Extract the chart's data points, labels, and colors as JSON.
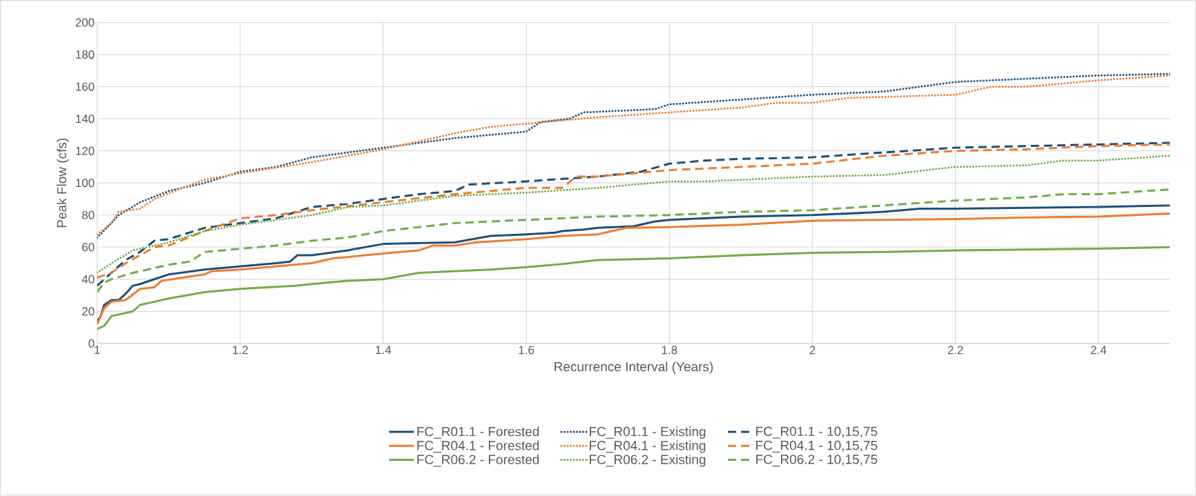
{
  "chart_data": {
    "type": "line",
    "xlabel": "Recurrence Interval (Years)",
    "ylabel": "Peak Flow (cfs)",
    "xlim": [
      1,
      2.5
    ],
    "ylim": [
      0,
      200
    ],
    "xticks": [
      1,
      1.2,
      1.4,
      1.6,
      1.8,
      2,
      2.2,
      2.4
    ],
    "yticks": [
      0,
      20,
      40,
      60,
      80,
      100,
      120,
      140,
      160,
      180,
      200
    ],
    "grid": true,
    "legend": "bottom",
    "series": [
      {
        "name": "FC_R01.1 - Forested",
        "color": "#1f4e79",
        "line_style": "solid",
        "x": [
          1.0,
          1.005,
          1.01,
          1.02,
          1.03,
          1.04,
          1.05,
          1.06,
          1.08,
          1.1,
          1.15,
          1.2,
          1.25,
          1.27,
          1.28,
          1.3,
          1.35,
          1.4,
          1.5,
          1.55,
          1.6,
          1.64,
          1.65,
          1.68,
          1.7,
          1.75,
          1.78,
          1.8,
          1.9,
          2.0,
          2.1,
          2.15,
          2.2,
          2.3,
          2.4,
          2.5
        ],
        "values": [
          14,
          17,
          24,
          27,
          27,
          31,
          36,
          37,
          40,
          43,
          46,
          48,
          50,
          51,
          55,
          55,
          58,
          62,
          63,
          67,
          68,
          69,
          70,
          71,
          72,
          73,
          76,
          77,
          79,
          80,
          82,
          84,
          84,
          84.5,
          85,
          86
        ]
      },
      {
        "name": "FC_R01.1 - Existing",
        "color": "#1f4e79",
        "line_style": "dotted",
        "x": [
          1.0,
          1.02,
          1.03,
          1.06,
          1.1,
          1.15,
          1.2,
          1.25,
          1.3,
          1.35,
          1.4,
          1.5,
          1.6,
          1.62,
          1.66,
          1.68,
          1.78,
          1.8,
          1.9,
          2.0,
          2.1,
          2.2,
          2.3,
          2.4,
          2.5
        ],
        "values": [
          66,
          75,
          80,
          88,
          95,
          100,
          107,
          110,
          116,
          119,
          122,
          128,
          132,
          138,
          140,
          144,
          146,
          149,
          152,
          155,
          157,
          163,
          165,
          167,
          168
        ]
      },
      {
        "name": "FC_R01.1 - 10,15,75",
        "color": "#1f4e79",
        "line_style": "dashed",
        "x": [
          1.0,
          1.02,
          1.04,
          1.06,
          1.08,
          1.1,
          1.15,
          1.2,
          1.25,
          1.3,
          1.35,
          1.4,
          1.45,
          1.5,
          1.52,
          1.6,
          1.7,
          1.76,
          1.8,
          1.85,
          1.9,
          2.0,
          2.1,
          2.2,
          2.3,
          2.4,
          2.5
        ],
        "values": [
          36,
          44,
          52,
          57,
          64,
          65,
          72,
          75,
          78,
          85,
          87,
          90,
          93,
          95,
          99,
          101,
          104,
          107,
          112,
          114,
          115,
          116,
          119,
          122,
          123,
          124,
          125
        ]
      },
      {
        "name": "FC_R04.1 - Forested",
        "color": "#ed7d31",
        "line_style": "solid",
        "x": [
          1.0,
          1.01,
          1.02,
          1.04,
          1.06,
          1.08,
          1.09,
          1.15,
          1.16,
          1.2,
          1.25,
          1.3,
          1.33,
          1.4,
          1.45,
          1.47,
          1.5,
          1.53,
          1.6,
          1.65,
          1.7,
          1.72,
          1.74,
          1.8,
          1.9,
          2.0,
          2.1,
          2.2,
          2.3,
          2.4,
          2.5
        ],
        "values": [
          12,
          22,
          26,
          27,
          34,
          35,
          39,
          43,
          45,
          46,
          48,
          50,
          53,
          56,
          58,
          61,
          61,
          63,
          65,
          67,
          68,
          70,
          72,
          72.5,
          74,
          76.5,
          77,
          77.5,
          78.5,
          79,
          81
        ]
      },
      {
        "name": "FC_R04.1 - Existing",
        "color": "#ed7d31",
        "line_style": "dotted",
        "x": [
          1.0,
          1.02,
          1.03,
          1.06,
          1.08,
          1.12,
          1.15,
          1.2,
          1.3,
          1.4,
          1.45,
          1.5,
          1.55,
          1.6,
          1.65,
          1.7,
          1.8,
          1.9,
          1.95,
          2.0,
          2.05,
          2.2,
          2.25,
          2.3,
          2.4,
          2.5
        ],
        "values": [
          68,
          75,
          82,
          84,
          90,
          97,
          102,
          106,
          113,
          121,
          126,
          131,
          135,
          137,
          139,
          141,
          144,
          147,
          150,
          150,
          153,
          155,
          160,
          160,
          164,
          167
        ]
      },
      {
        "name": "FC_R04.1 - 10,15,75",
        "color": "#ed7d31",
        "line_style": "dashed",
        "x": [
          1.0,
          1.02,
          1.04,
          1.08,
          1.1,
          1.15,
          1.2,
          1.25,
          1.3,
          1.4,
          1.5,
          1.6,
          1.65,
          1.67,
          1.7,
          1.8,
          1.9,
          2.0,
          2.1,
          2.2,
          2.3,
          2.4,
          2.5
        ],
        "values": [
          41,
          44,
          50,
          60,
          61,
          70,
          78,
          80,
          83,
          88,
          93,
          97,
          97,
          104,
          104,
          108,
          110,
          112,
          117,
          120,
          121,
          123,
          124
        ]
      },
      {
        "name": "FC_R06.2 - Forested",
        "color": "#70ad47",
        "line_style": "solid",
        "x": [
          1.0,
          1.01,
          1.02,
          1.04,
          1.05,
          1.06,
          1.08,
          1.1,
          1.15,
          1.2,
          1.28,
          1.3,
          1.35,
          1.4,
          1.45,
          1.5,
          1.55,
          1.6,
          1.65,
          1.68,
          1.7,
          1.8,
          1.9,
          2.0,
          2.1,
          2.2,
          2.3,
          2.4,
          2.5
        ],
        "values": [
          9,
          11,
          17,
          19,
          20,
          24,
          26,
          28,
          32,
          34,
          36,
          37,
          39,
          40,
          44,
          45,
          46,
          47.5,
          49.5,
          51,
          52,
          53,
          55,
          56.5,
          57,
          58,
          58.5,
          59,
          60
        ]
      },
      {
        "name": "FC_R06.2 - Existing",
        "color": "#70ad47",
        "line_style": "dotted",
        "x": [
          1.0,
          1.02,
          1.05,
          1.1,
          1.15,
          1.2,
          1.3,
          1.35,
          1.4,
          1.5,
          1.6,
          1.7,
          1.8,
          1.85,
          1.9,
          2.0,
          2.1,
          2.2,
          2.3,
          2.35,
          2.4,
          2.5
        ],
        "values": [
          44,
          50,
          58,
          63,
          70,
          74,
          80,
          85,
          86,
          92,
          94,
          97,
          101,
          101,
          102,
          104,
          105,
          110,
          111,
          114,
          114,
          117
        ]
      },
      {
        "name": "FC_R06.2 - 10,15,75",
        "color": "#70ad47",
        "line_style": "dashed",
        "x": [
          1.0,
          1.01,
          1.02,
          1.05,
          1.1,
          1.13,
          1.15,
          1.2,
          1.25,
          1.3,
          1.35,
          1.4,
          1.5,
          1.6,
          1.7,
          1.8,
          1.9,
          2.0,
          2.1,
          2.2,
          2.3,
          2.35,
          2.4,
          2.5
        ],
        "values": [
          32,
          38,
          40,
          44,
          49,
          51,
          57,
          59,
          61,
          64,
          66,
          70,
          75,
          77,
          79,
          80,
          82,
          83,
          86,
          89,
          91,
          93,
          93,
          96
        ]
      }
    ]
  }
}
